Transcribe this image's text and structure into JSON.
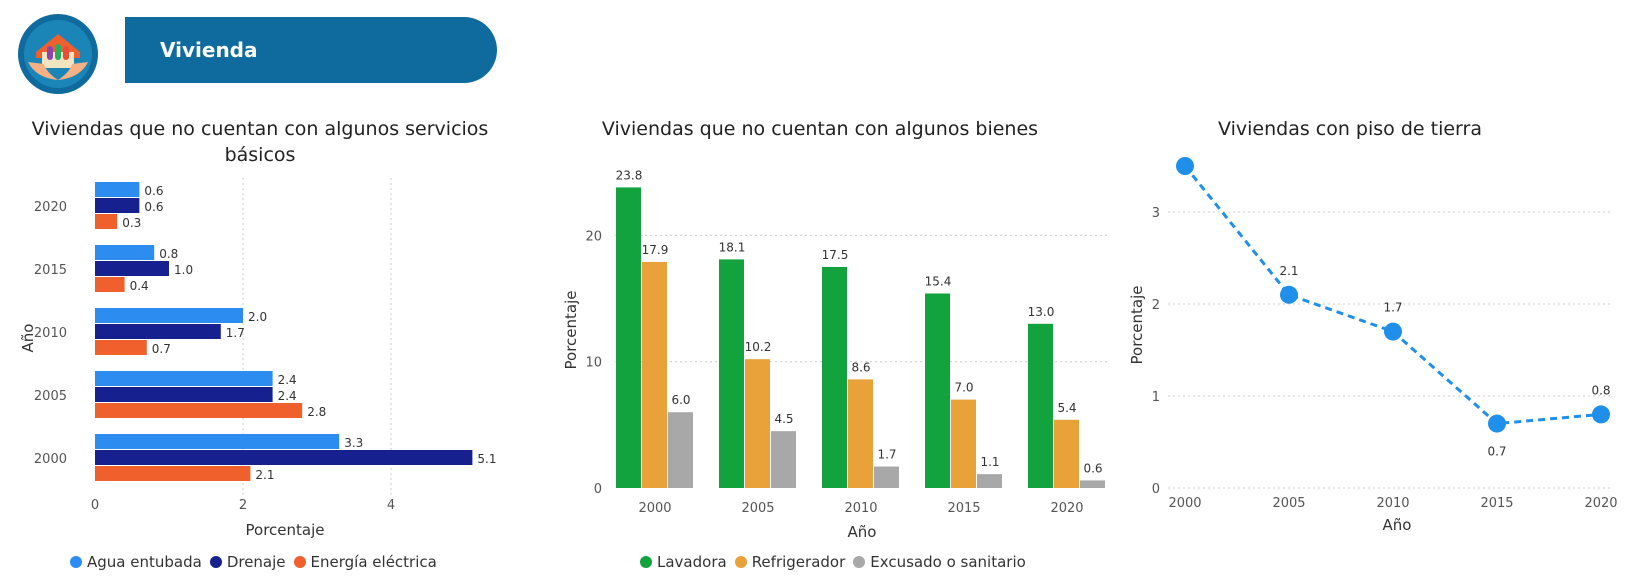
{
  "header": {
    "title": "Vivienda",
    "icon": "house-hands-icon"
  },
  "colors": {
    "banner": "#0f6b9d",
    "agua": "#2c8cf0",
    "drenaje": "#16218f",
    "energia": "#f0602d",
    "lavadora": "#12a33f",
    "refrigerador": "#e9a23a",
    "excusado": "#a8a8a8",
    "line": "#1f8fea"
  },
  "chart_data": [
    {
      "type": "bar",
      "orientation": "horizontal",
      "title": "Viviendas que no cuentan con algunos servicios básicos",
      "xlabel": "Porcentaje",
      "ylabel": "Año",
      "categories": [
        "2020",
        "2015",
        "2010",
        "2005",
        "2000"
      ],
      "xlim": [
        0,
        5.4
      ],
      "xticks": [
        "0",
        "2",
        "4"
      ],
      "grid": true,
      "legend": "bottom",
      "series": [
        {
          "name": "Agua entubada",
          "values": [
            0.6,
            0.8,
            2.0,
            2.4,
            3.3
          ],
          "labels": [
            "0.6",
            "0.8",
            "2.0",
            "2.4",
            "3.3"
          ]
        },
        {
          "name": "Drenaje",
          "values": [
            0.6,
            1.0,
            1.7,
            2.4,
            5.1
          ],
          "labels": [
            "0.6",
            "1.0",
            "1.7",
            "2.4",
            "5.1"
          ]
        },
        {
          "name": "Energía eléctrica",
          "values": [
            0.3,
            0.4,
            0.7,
            2.8,
            2.1
          ],
          "labels": [
            "0.3",
            "0.4",
            "0.7",
            "2.8",
            "2.1"
          ]
        }
      ]
    },
    {
      "type": "bar",
      "orientation": "vertical",
      "title": "Viviendas que no cuentan con algunos bienes",
      "xlabel": "Año",
      "ylabel": "Porcentaje",
      "categories": [
        "2000",
        "2005",
        "2010",
        "2015",
        "2020"
      ],
      "ylim": [
        0,
        24
      ],
      "yticks": [
        "0",
        "10",
        "20"
      ],
      "grid": true,
      "legend": "bottom",
      "series": [
        {
          "name": "Lavadora",
          "values": [
            23.8,
            18.1,
            17.5,
            15.4,
            13.0
          ],
          "labels": [
            "23.8",
            "18.1",
            "17.5",
            "15.4",
            "13.0"
          ]
        },
        {
          "name": "Refrigerador",
          "values": [
            17.9,
            10.2,
            8.6,
            7.0,
            5.4
          ],
          "labels": [
            "17.9",
            "10.2",
            "8.6",
            "7.0",
            "5.4"
          ]
        },
        {
          "name": "Excusado o sanitario",
          "values": [
            6.0,
            4.5,
            1.7,
            1.1,
            0.6
          ],
          "labels": [
            "6.0",
            "4.5",
            "1.7",
            "1.1",
            "0.6"
          ]
        }
      ]
    },
    {
      "type": "line",
      "title": "Viviendas con piso de tierra",
      "xlabel": "Año",
      "ylabel": "Porcentaje",
      "x": [
        "2000",
        "2005",
        "2010",
        "2015",
        "2020"
      ],
      "values": [
        3.5,
        2.1,
        1.7,
        0.7,
        0.8
      ],
      "labels": [
        "",
        "2.1",
        "1.7",
        "0.7",
        "0.8"
      ],
      "ylim": [
        0,
        3.6
      ],
      "yticks": [
        "0",
        "1",
        "2",
        "3"
      ],
      "line_style": "dashed",
      "grid": true
    }
  ]
}
